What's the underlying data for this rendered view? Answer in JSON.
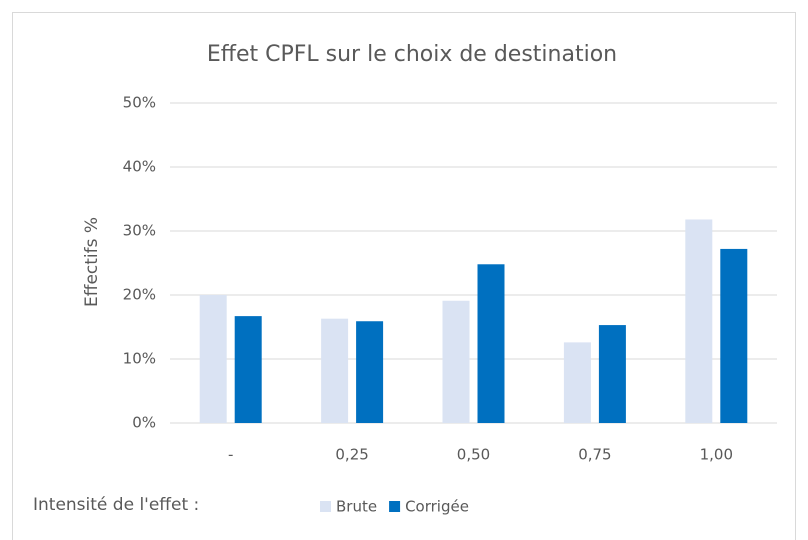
{
  "chart_data": {
    "type": "bar",
    "title": "Effet CPFL sur le choix de destination",
    "y_label": "Effectifs %",
    "x_label": "Intensité de l'effet :",
    "categories": [
      "-",
      "0,25",
      "0,50",
      "0,75",
      "1,00"
    ],
    "series": [
      {
        "name": "Brute",
        "color": "#dae3f3",
        "values": [
          20,
          16.3,
          19.1,
          12.6,
          31.8
        ]
      },
      {
        "name": "Corrigée",
        "color": "#0070c0",
        "values": [
          16.7,
          15.9,
          24.8,
          15.3,
          27.2
        ]
      }
    ],
    "ylim": [
      0,
      50
    ],
    "yticks": [
      {
        "value": 0,
        "label": "0%"
      },
      {
        "value": 10,
        "label": "10%"
      },
      {
        "value": 20,
        "label": "20%"
      },
      {
        "value": 30,
        "label": "30%"
      },
      {
        "value": 40,
        "label": "40%"
      },
      {
        "value": 50,
        "label": "50%"
      }
    ],
    "grid": true,
    "legend": "bottom"
  }
}
